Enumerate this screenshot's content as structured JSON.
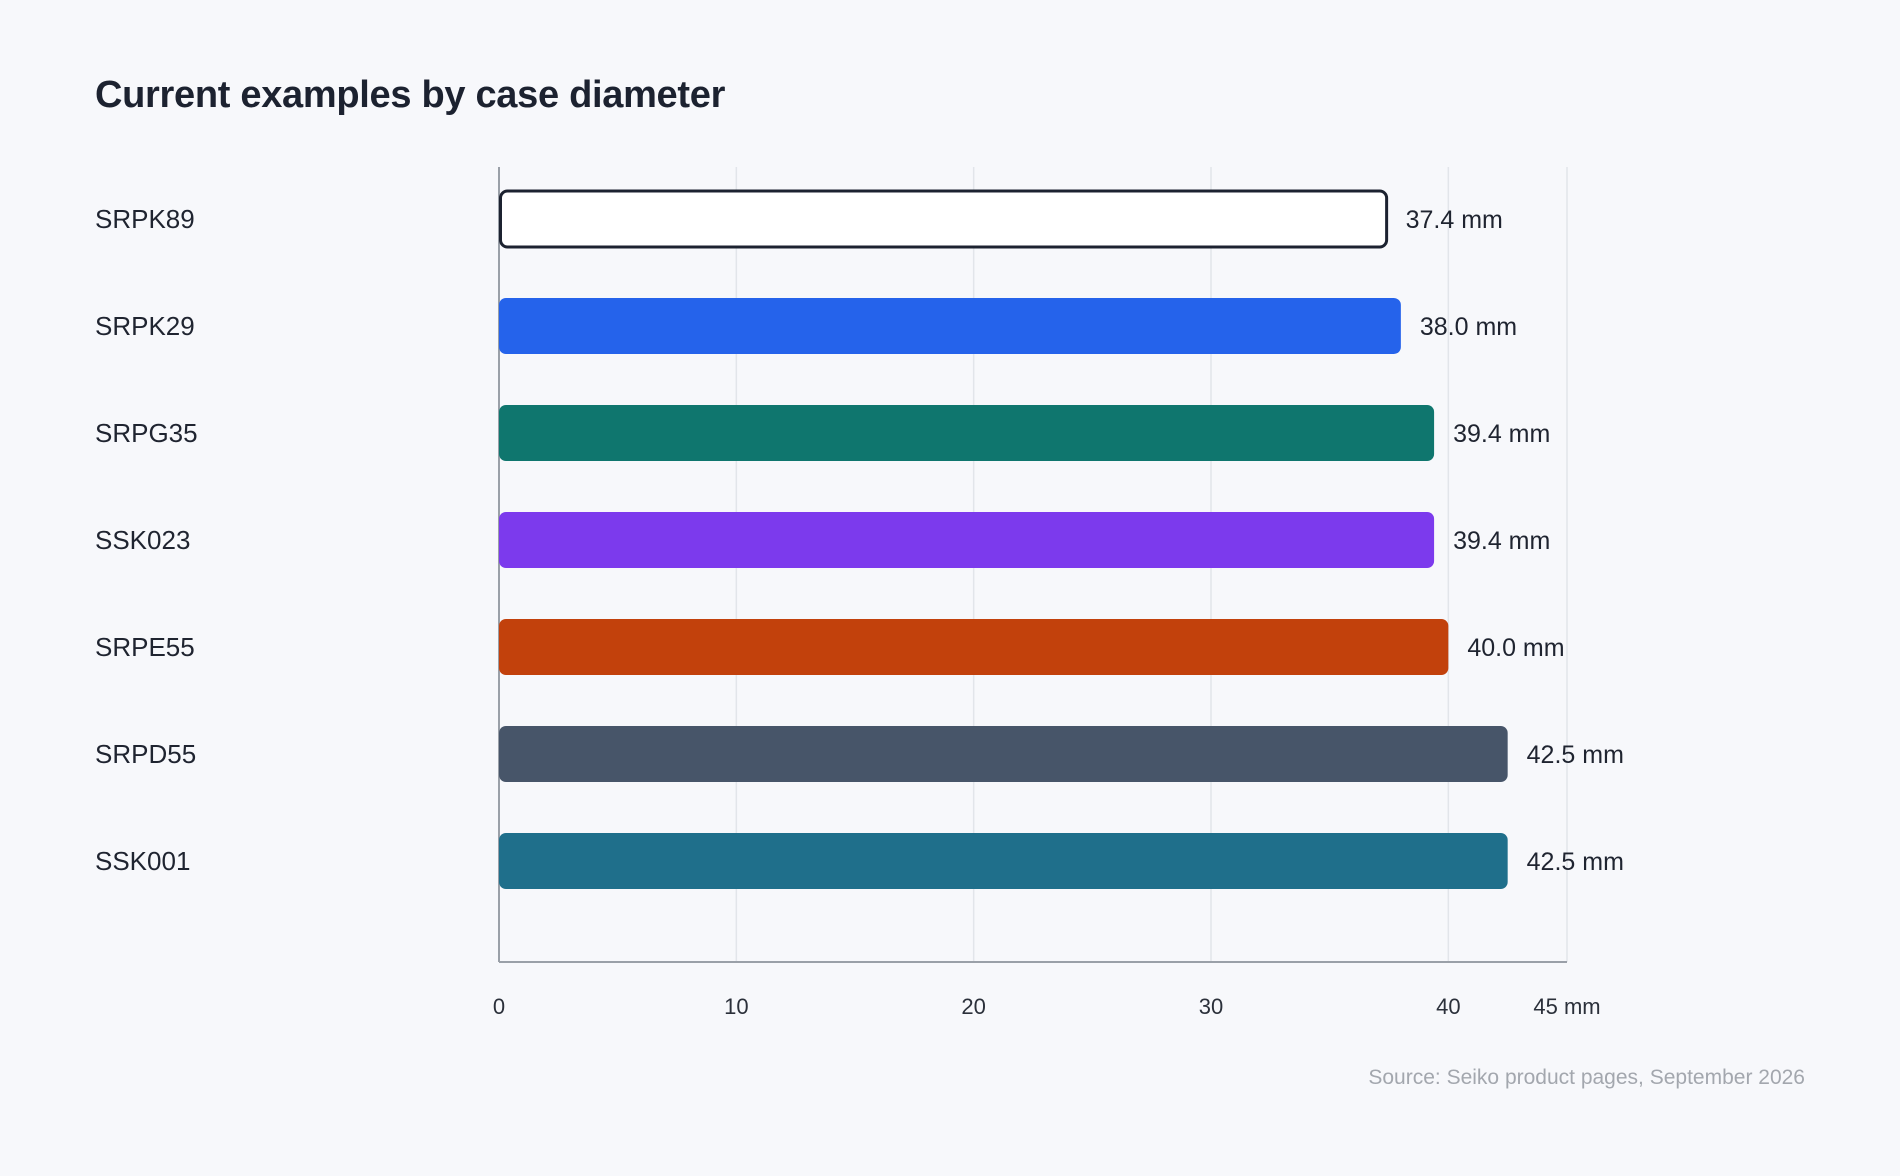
{
  "page": {
    "title": "Current examples by case diameter",
    "source": "Source: Seiko product pages, September 2026"
  },
  "chart_data": {
    "type": "bar",
    "orientation": "horizontal",
    "title": "Current examples by case diameter",
    "unit": "mm",
    "categories": [
      "SRPK89",
      "SRPK29",
      "SRPG35",
      "SSK023",
      "SRPE55",
      "SRPD55",
      "SSK001"
    ],
    "values": [
      37.4,
      38.0,
      39.4,
      39.4,
      40.0,
      42.5,
      42.5
    ],
    "value_labels": [
      "37.4 mm",
      "38.0 mm",
      "39.4 mm",
      "39.4 mm",
      "40.0 mm",
      "42.5 mm",
      "42.5 mm"
    ],
    "colors": [
      "#ffffff",
      "#2563eb",
      "#0f766e",
      "#7c3aed",
      "#c2410c",
      "#475569",
      "#1f6f8b"
    ],
    "outlined": [
      true,
      false,
      false,
      false,
      false,
      false,
      false
    ],
    "outline_color": "#1c2230",
    "xlim": [
      0,
      45
    ],
    "x_ticks": [
      0,
      10,
      20,
      30,
      40,
      45
    ],
    "x_tick_labels": [
      "0",
      "10",
      "20",
      "30",
      "40",
      "45 mm"
    ],
    "grid": true,
    "grid_color": "#e2e5ea",
    "axis_color": "#9aa0a8",
    "legend": "none"
  }
}
